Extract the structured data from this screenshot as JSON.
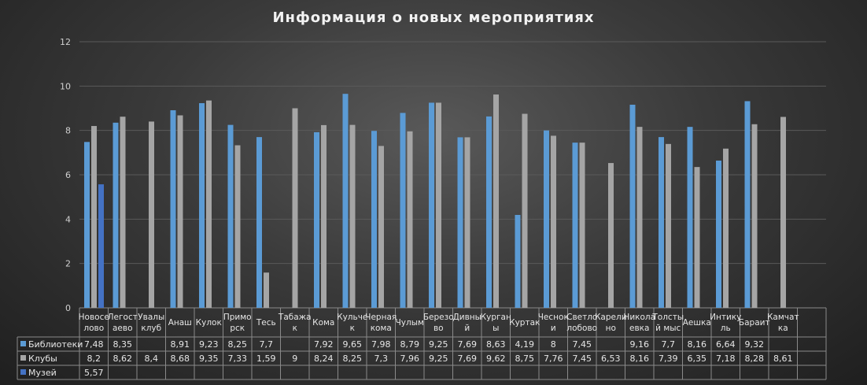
{
  "chart_data": {
    "type": "bar",
    "title": "Информация о новых мероприятиях",
    "ylim": [
      0,
      12
    ],
    "yticks": [
      0,
      2,
      4,
      6,
      8,
      10,
      12
    ],
    "grid": true,
    "legend": "data-table",
    "categories": [
      [
        "Новосе",
        "лово"
      ],
      [
        "Легост",
        "аево"
      ],
      [
        "Увалы",
        "клуб"
      ],
      [
        "Анаш"
      ],
      [
        "Кулок"
      ],
      [
        "Примо",
        "рск"
      ],
      [
        "Тесь"
      ],
      [
        "Табажа",
        "к"
      ],
      [
        "Кома"
      ],
      [
        "Кульче",
        "к"
      ],
      [
        "Черная",
        "кома"
      ],
      [
        "Чулым"
      ],
      [
        "Березо",
        "во"
      ],
      [
        "Дивны",
        "й"
      ],
      [
        "Курган",
        "ы"
      ],
      [
        "Куртак"
      ],
      [
        "Чеснок",
        "и"
      ],
      [
        "Светло",
        "лобово"
      ],
      [
        "Карели",
        "но"
      ],
      [
        "Никола",
        "евка"
      ],
      [
        "Толсты",
        "й мыс"
      ],
      [
        "Аешка"
      ],
      [
        "Интику",
        "ль"
      ],
      [
        "Бараит"
      ],
      [
        "Камчат",
        "ка"
      ],
      [
        ""
      ]
    ],
    "series": [
      {
        "name": "Библиотеки",
        "color": "#5b9bd5",
        "values": [
          7.48,
          8.35,
          null,
          8.91,
          9.23,
          8.25,
          7.7,
          null,
          7.92,
          9.65,
          7.98,
          8.79,
          9.25,
          7.69,
          8.63,
          4.19,
          8,
          7.45,
          null,
          9.16,
          7.7,
          8.16,
          6.64,
          9.32,
          null,
          null
        ],
        "labels": [
          "7,48",
          "8,35",
          "",
          "8,91",
          "9,23",
          "8,25",
          "7,7",
          "",
          "7,92",
          "9,65",
          "7,98",
          "8,79",
          "9,25",
          "7,69",
          "8,63",
          "4,19",
          "8",
          "7,45",
          "",
          "9,16",
          "7,7",
          "8,16",
          "6,64",
          "9,32",
          "",
          ""
        ]
      },
      {
        "name": "Клубы",
        "color": "#a5a5a5",
        "values": [
          8.2,
          8.62,
          8.4,
          8.68,
          9.35,
          7.33,
          1.59,
          9,
          8.24,
          8.25,
          7.3,
          7.96,
          9.25,
          7.69,
          9.62,
          8.75,
          7.76,
          7.45,
          6.53,
          8.16,
          7.39,
          6.35,
          7.18,
          8.28,
          8.61,
          null
        ],
        "labels": [
          "8,2",
          "8,62",
          "8,4",
          "8,68",
          "9,35",
          "7,33",
          "1,59",
          "9",
          "8,24",
          "8,25",
          "7,3",
          "7,96",
          "9,25",
          "7,69",
          "9,62",
          "8,75",
          "7,76",
          "7,45",
          "6,53",
          "8,16",
          "7,39",
          "6,35",
          "7,18",
          "8,28",
          "8,61",
          ""
        ]
      },
      {
        "name": "Музей",
        "color": "#4472c4",
        "values": [
          5.57,
          null,
          null,
          null,
          null,
          null,
          null,
          null,
          null,
          null,
          null,
          null,
          null,
          null,
          null,
          null,
          null,
          null,
          null,
          null,
          null,
          null,
          null,
          null,
          null,
          null
        ],
        "labels": [
          "5,57",
          "",
          "",
          "",
          "",
          "",
          "",
          "",
          "",
          "",
          "",
          "",
          "",
          "",
          "",
          "",
          "",
          "",
          "",
          "",
          "",
          "",
          "",
          "",
          "",
          ""
        ]
      }
    ]
  }
}
